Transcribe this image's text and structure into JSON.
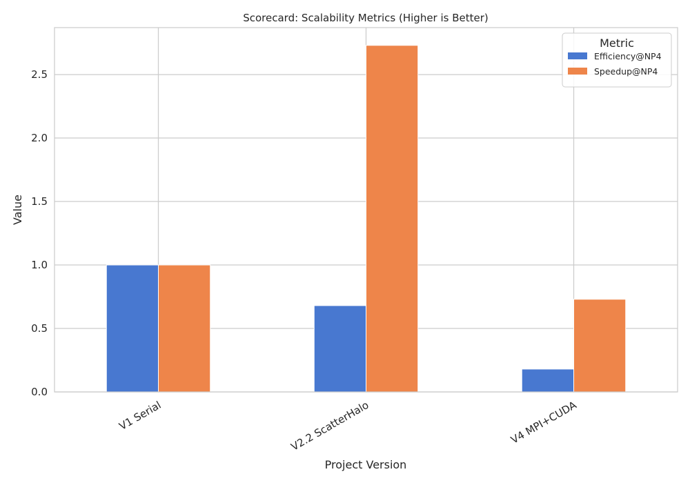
{
  "chart_data": {
    "type": "bar",
    "title": "Scorecard: Scalability Metrics (Higher is Better)",
    "xlabel": "Project Version",
    "ylabel": "Value",
    "categories": [
      "V1 Serial",
      "V2.2 ScatterHalo",
      "V4 MPI+CUDA"
    ],
    "series": [
      {
        "name": "Efficiency@NP4",
        "values": [
          1.0,
          0.68,
          0.18
        ],
        "color": "#4878d0"
      },
      {
        "name": "Speedup@NP4",
        "values": [
          1.0,
          2.73,
          0.73
        ],
        "color": "#ee854a"
      }
    ],
    "ylim": [
      0,
      2.87
    ],
    "yticks": [
      "0.0",
      "0.5",
      "1.0",
      "1.5",
      "2.0",
      "2.5"
    ],
    "grid": true,
    "legend": {
      "title": "Metric",
      "placement": "top-right"
    }
  }
}
